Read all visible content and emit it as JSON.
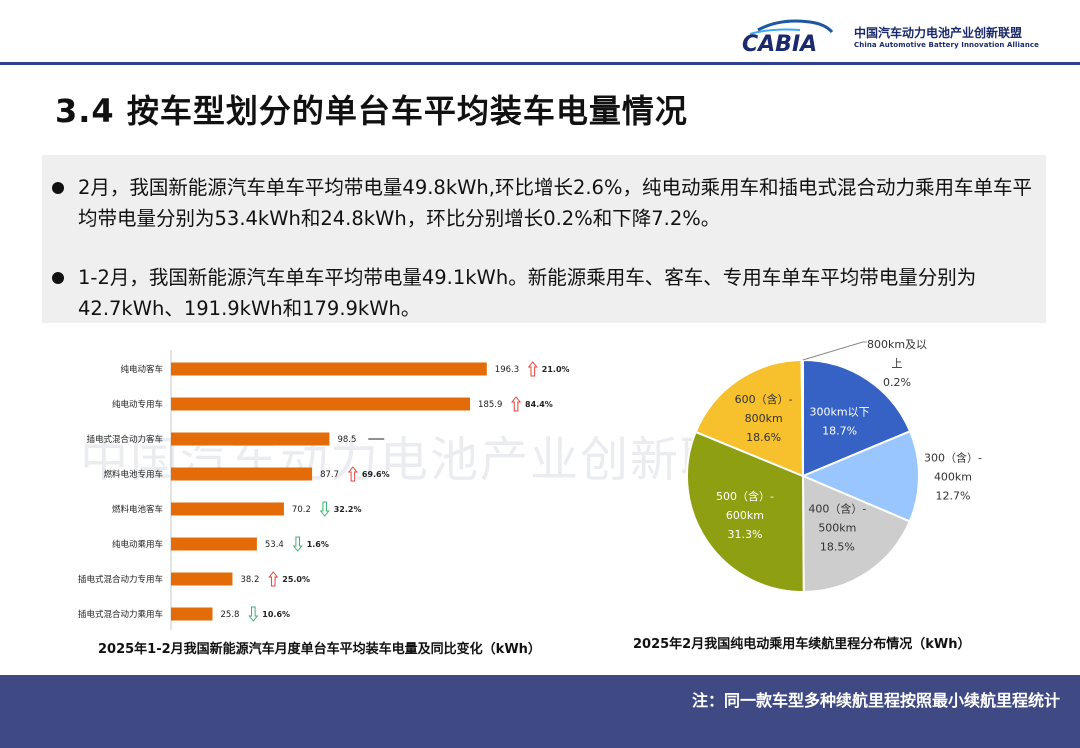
{
  "header": {
    "logo_text": "CABIA",
    "logo_cn": "中国汽车动力电池产业创新联盟",
    "logo_en": "China Automotive Battery Innovation Alliance"
  },
  "title": "3.4 按车型划分的单台车平均装车电量情况",
  "summary": {
    "bullets": [
      "2月，我国新能源汽车单车平均带电量49.8kWh,环比增长2.6%，纯电动乘用车和插电式混合动力乘用车单车平均带电量分别为53.4kWh和24.8kWh，环比分别增长0.2%和下降7.2%。",
      "1-2月，我国新能源汽车单车平均带电量49.1kWh。新能源乘用车、客车、专用车单车平均带电量分别为42.7kWh、191.9kWh和179.9kWh。"
    ]
  },
  "watermark": "中国汽车动力电池产业创新联盟",
  "colors": {
    "bar": "#e36c09",
    "up": "#e8413b",
    "down": "#3cb371",
    "footer": "#3f4a84"
  },
  "footer": {
    "note": "注：同一款车型多种续航里程按照最小续航里程统计"
  },
  "chart_data": [
    {
      "type": "bar",
      "orientation": "horizontal",
      "title": "2025年1-2月我国新能源汽车月度单台车平均装车电量及同比变化（kWh）",
      "categories": [
        "纯电动客车",
        "纯电动专用车",
        "插电式混合动力客车",
        "燃料电池专用车",
        "燃料电池客车",
        "纯电动乘用车",
        "插电式混合动力专用车",
        "插电式混合动力乘用车"
      ],
      "values": [
        196.3,
        185.9,
        98.5,
        87.7,
        70.2,
        53.4,
        38.2,
        25.8
      ],
      "value_labels": [
        "196.3",
        "185.9",
        "98.5",
        "87.7",
        "70.2",
        "53.4",
        "38.2",
        "25.8"
      ],
      "yoy_direction": [
        "up",
        "up",
        "flat",
        "up",
        "down",
        "down",
        "up",
        "down"
      ],
      "yoy_labels": [
        "21.0%",
        "84.4%",
        "",
        "69.6%",
        "32.2%",
        "1.6%",
        "25.0%",
        "10.6%"
      ],
      "xlim": [
        0,
        230
      ]
    },
    {
      "type": "pie",
      "title": "2025年2月我国纯电动乘用车续航里程分布情况（kWh）",
      "slices": [
        {
          "label": "300km以下",
          "value": 18.7,
          "pct": "18.7%",
          "color": "#3562c4"
        },
        {
          "label": "300（含）-400km",
          "value": 12.7,
          "pct": "12.7%",
          "color": "#99c6ff"
        },
        {
          "label": "400（含）-500km",
          "value": 18.5,
          "pct": "18.5%",
          "color": "#cdcdcd"
        },
        {
          "label": "500（含）-600km",
          "value": 31.3,
          "pct": "31.3%",
          "color": "#8f9f12"
        },
        {
          "label": "600（含）-800km",
          "value": 18.6,
          "pct": "18.6%",
          "color": "#f6c12c"
        },
        {
          "label": "800km及以上",
          "value": 0.2,
          "pct": "0.2%",
          "color": "#3562c4"
        }
      ],
      "label_lines": {
        "s0": [
          "300km以下",
          "18.7%"
        ],
        "s1": [
          "300（含）-",
          "400km",
          "12.7%"
        ],
        "s2": [
          "400（含）-",
          "500km",
          "18.5%"
        ],
        "s3": [
          "500（含）-",
          "600km",
          "31.3%"
        ],
        "s4": [
          "600（含）-",
          "800km",
          "18.6%"
        ],
        "s5": [
          "800km及以",
          "上",
          "0.2%"
        ]
      }
    }
  ]
}
